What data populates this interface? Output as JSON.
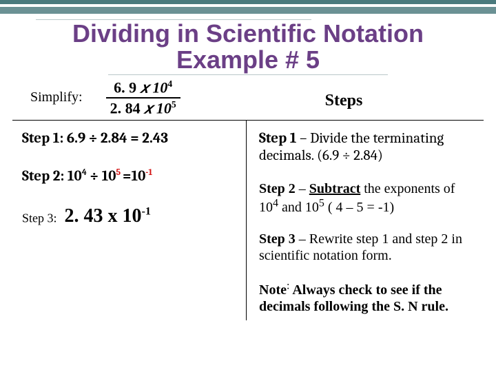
{
  "colors": {
    "bar_dark": "#4a7a7d",
    "bar_light": "#6b9194",
    "title": "#6b3f86",
    "rule_light": "#b9c7c9",
    "exp_red": "#d31313",
    "text": "#000000",
    "background": "#ffffff"
  },
  "typography": {
    "title_family": "Trebuchet MS",
    "title_size": 36,
    "body_family": "Georgia",
    "math_family": "Cambria"
  },
  "title": {
    "line1": "Dividing in Scientific Notation",
    "line2": "Example # 5"
  },
  "problem": {
    "label": "Simplify:",
    "numerator_coef": "6. 9",
    "numerator_x": " 𝑥 10",
    "numerator_exp": "4",
    "denominator_coef": "2. 84",
    "denominator_x": " 𝑥 10",
    "denominator_exp": "5"
  },
  "steps_header": "Steps",
  "left": {
    "step1_label": "Step 1:",
    "step1_eq": " 6.9 ÷ 2.84 = 2.43",
    "step2_label": "Step 2: ",
    "step2_lhs_base": "10",
    "step2_lhs_exp": "4",
    "step2_div": " ÷ ",
    "step2_rhs_base": "10",
    "step2_rhs_exp": "5 ",
    "step2_eqsign": "=",
    "step2_res_base": "10",
    "step2_res_exp": "-1",
    "step3_label": "Step 3:",
    "step3_value_coef": " 2. 43 x 10",
    "step3_value_exp": "-1"
  },
  "right": {
    "r1_strong": "Step 1 ",
    "r1_rest": "– Divide the terminating decimals. (6.9 ÷ 2.84)",
    "r2_strong": "Step 2",
    "r2_a": " – ",
    "r2_sub": "Subtract",
    "r2_b": " the exponents of 10",
    "r2_exp1": "4",
    "r2_c": " and 10",
    "r2_exp2": "5",
    "r2_d": " ( 4 – 5 = -1)",
    "r3_strong": "Step 3",
    "r3_rest": " – Rewrite step 1 and step 2 in scientific notation form.",
    "r4_strong": "Note",
    "r4_colon": ":",
    "r4_rest": " Always check to see if the decimals following the S. N rule."
  }
}
